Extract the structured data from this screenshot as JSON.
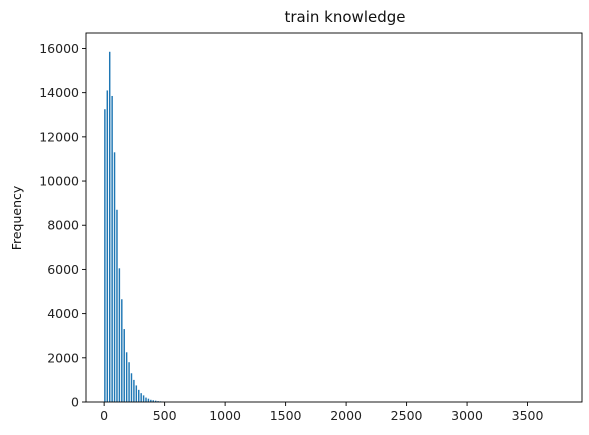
{
  "chart_data": {
    "type": "bar",
    "title": "train knowledge",
    "xlabel": "",
    "ylabel": "Frequency",
    "xlim": [
      -150,
      3950
    ],
    "ylim": [
      0,
      16700
    ],
    "grid": false,
    "legend": "none",
    "bar_color": "#1f77b4",
    "bar_width": 20,
    "xticks": [
      0,
      500,
      1000,
      1500,
      2000,
      2500,
      3000,
      3500
    ],
    "yticks": [
      0,
      2000,
      4000,
      6000,
      8000,
      10000,
      12000,
      14000,
      16000
    ],
    "x": [
      10,
      30,
      50,
      70,
      90,
      110,
      130,
      150,
      170,
      190,
      210,
      230,
      250,
      270,
      290,
      310,
      330,
      350,
      370,
      390,
      410,
      430,
      450,
      470,
      490
    ],
    "values": [
      13250,
      14100,
      15850,
      13850,
      11300,
      8700,
      6050,
      4650,
      3300,
      2250,
      1800,
      1300,
      1000,
      750,
      550,
      400,
      300,
      200,
      150,
      100,
      80,
      60,
      40,
      30,
      20
    ]
  }
}
